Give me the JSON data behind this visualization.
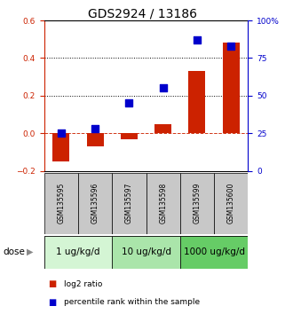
{
  "title": "GDS2924 / 13186",
  "samples": [
    "GSM135595",
    "GSM135596",
    "GSM135597",
    "GSM135598",
    "GSM135599",
    "GSM135600"
  ],
  "log2_ratio": [
    -0.15,
    -0.07,
    -0.03,
    0.05,
    0.33,
    0.48
  ],
  "percentile_rank": [
    25,
    28,
    45,
    55,
    87,
    83
  ],
  "ylim_left": [
    -0.2,
    0.6
  ],
  "ylim_right": [
    0,
    100
  ],
  "yticks_left": [
    -0.2,
    0.0,
    0.2,
    0.4,
    0.6
  ],
  "yticks_right": [
    0,
    25,
    50,
    75,
    100
  ],
  "ytick_labels_right": [
    "0",
    "25",
    "50",
    "75",
    "100%"
  ],
  "dose_groups": [
    {
      "label": "1 ug/kg/d",
      "samples": [
        0,
        1
      ],
      "color": "#d4f5d4"
    },
    {
      "label": "10 ug/kg/d",
      "samples": [
        2,
        3
      ],
      "color": "#aae5aa"
    },
    {
      "label": "1000 ug/kg/d",
      "samples": [
        4,
        5
      ],
      "color": "#66cc66"
    }
  ],
  "bar_color": "#cc2200",
  "scatter_color": "#0000cc",
  "bar_width": 0.5,
  "scatter_size": 28,
  "background_color": "#ffffff",
  "plot_bg_color": "#ffffff",
  "label_gsm_bg": "#c8c8c8",
  "dose_label": "dose",
  "legend_items": [
    "log2 ratio",
    "percentile rank within the sample"
  ],
  "legend_colors": [
    "#cc2200",
    "#0000cc"
  ],
  "title_fontsize": 10,
  "tick_fontsize": 6.5,
  "gsm_fontsize": 5.5,
  "dose_fontsize": 7.5
}
